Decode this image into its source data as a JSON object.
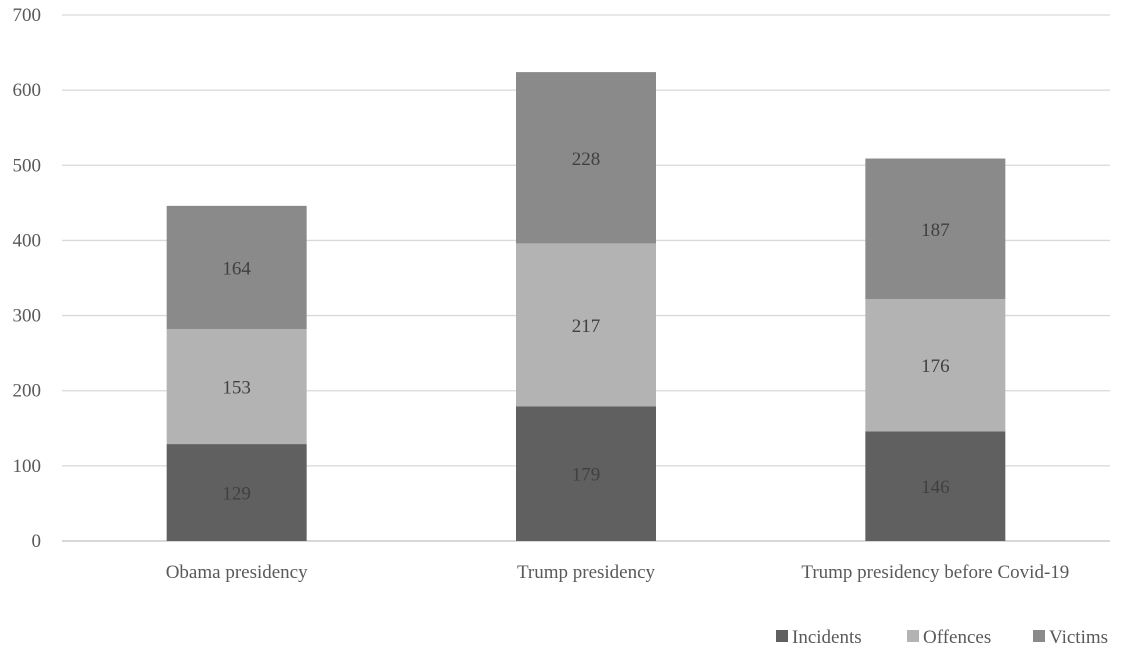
{
  "chart_data": {
    "type": "bar",
    "stacked": true,
    "categories": [
      "Obama presidency",
      "Trump presidency",
      "Trump presidency before Covid-19"
    ],
    "series": [
      {
        "name": "Incidents",
        "values": [
          129,
          179,
          146
        ],
        "color": "#606060"
      },
      {
        "name": "Offences",
        "values": [
          153,
          217,
          176
        ],
        "color": "#b3b3b3"
      },
      {
        "name": "Victims",
        "values": [
          164,
          228,
          187
        ],
        "color": "#8a8a8a"
      }
    ],
    "ylim": [
      0,
      700
    ],
    "yticks": [
      0,
      100,
      200,
      300,
      400,
      500,
      600,
      700
    ],
    "grid": true,
    "legend_position": "bottom-right",
    "title": "",
    "xlabel": "",
    "ylabel": ""
  }
}
